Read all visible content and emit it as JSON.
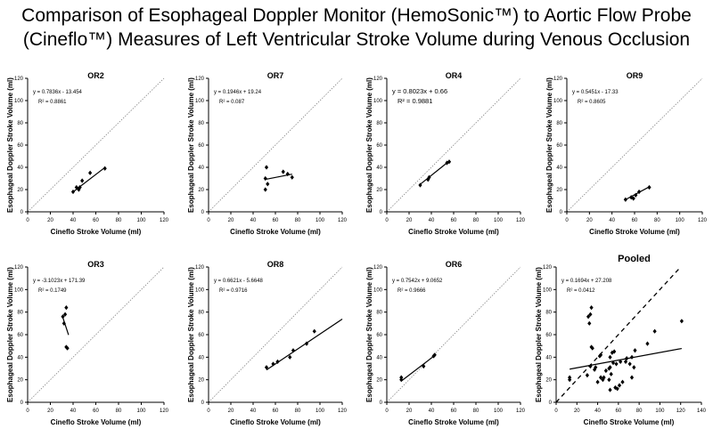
{
  "title": {
    "line1": "Comparison of Esophageal Doppler Monitor (HemoSonic™) to Aortic Flow Probe",
    "line2": "(Cineflo™) Measures of Left Ventricular Stroke Volume during Venous Occlusion"
  },
  "chart_data": [
    {
      "type": "scatter",
      "title": "OR2",
      "xlabel": "Cineflo Stroke Volume (ml)",
      "ylabel": "Esophageal Doppler Stroke Volume (ml)",
      "xlim": [
        0,
        120
      ],
      "ylim": [
        0,
        120
      ],
      "xticks": [
        0,
        20,
        40,
        60,
        80,
        100,
        120
      ],
      "yticks": [
        0,
        20,
        40,
        60,
        80,
        100,
        120
      ],
      "equation": "y = 0.7836x - 13.454",
      "r2": "R² = 0.8861",
      "points": [
        [
          40,
          18
        ],
        [
          43,
          22
        ],
        [
          45,
          20
        ],
        [
          46,
          22
        ],
        [
          48,
          28
        ],
        [
          55,
          35
        ],
        [
          68,
          39
        ]
      ],
      "fit": {
        "slope": 0.7836,
        "intercept": -13.454,
        "xrange": [
          40,
          68
        ]
      },
      "identity_line": true
    },
    {
      "type": "scatter",
      "title": "OR7",
      "xlabel": "Cineflo Stroke Volume (ml)",
      "ylabel": "Esophageal Doppler Stroke Volume (ml)",
      "xlim": [
        0,
        120
      ],
      "ylim": [
        0,
        120
      ],
      "xticks": [
        0,
        20,
        40,
        60,
        80,
        100,
        120
      ],
      "yticks": [
        0,
        20,
        40,
        60,
        80,
        100,
        120
      ],
      "equation": "y = 0.1946x + 19.24",
      "r2": "R² = 0.087",
      "points": [
        [
          51,
          20
        ],
        [
          51,
          30
        ],
        [
          52,
          40
        ],
        [
          53,
          25
        ],
        [
          67,
          36
        ],
        [
          71,
          34
        ],
        [
          75,
          31
        ]
      ],
      "fit": {
        "slope": 0.1946,
        "intercept": 19.24,
        "xrange": [
          51,
          75
        ]
      },
      "identity_line": true
    },
    {
      "type": "scatter",
      "title": "OR4",
      "xlabel": "Cineflo Stroke Volume (ml)",
      "ylabel": "Esophageal Doppler Stroke Volume (ml)",
      "xlim": [
        0,
        120
      ],
      "ylim": [
        0,
        120
      ],
      "xticks": [
        0,
        20,
        40,
        60,
        80,
        100,
        120
      ],
      "yticks": [
        0,
        20,
        40,
        60,
        80,
        100,
        120
      ],
      "equation": "y = 0.8023x + 0.66",
      "r2": "R² = 0.9881",
      "points": [
        [
          30,
          24
        ],
        [
          37,
          29
        ],
        [
          38,
          31
        ],
        [
          54,
          44
        ],
        [
          56,
          45
        ]
      ],
      "fit": {
        "slope": 0.8023,
        "intercept": 0.66,
        "xrange": [
          30,
          56
        ]
      },
      "identity_line": true
    },
    {
      "type": "scatter",
      "title": "OR9",
      "xlabel": "Cineflo Stroke Volume (ml)",
      "ylabel": "Esophageal Doppler Stroke Volume (ml)",
      "xlim": [
        0,
        120
      ],
      "ylim": [
        0,
        120
      ],
      "xticks": [
        0,
        20,
        40,
        60,
        80,
        100,
        120
      ],
      "yticks": [
        0,
        20,
        40,
        60,
        80,
        100,
        120
      ],
      "equation": "y = 0.5451x - 17.33",
      "r2": "R² = 0.8605",
      "points": [
        [
          52,
          11
        ],
        [
          57,
          13
        ],
        [
          59,
          12
        ],
        [
          61,
          15
        ],
        [
          64,
          18
        ],
        [
          73,
          22
        ]
      ],
      "fit": {
        "slope": 0.5451,
        "intercept": -17.33,
        "xrange": [
          52,
          73
        ]
      },
      "identity_line": true
    },
    {
      "type": "scatter",
      "title": "OR3",
      "xlabel": "Cineflo Stroke Volume (ml)",
      "ylabel": "Esophageal Doppler Stroke Volume (ml)",
      "xlim": [
        0,
        120
      ],
      "ylim": [
        0,
        120
      ],
      "xticks": [
        0,
        20,
        40,
        60,
        80,
        100,
        120
      ],
      "yticks": [
        0,
        20,
        40,
        60,
        80,
        100,
        120
      ],
      "equation": "y = -3.1023x + 171.39",
      "r2": "R² = 0.1749",
      "points": [
        [
          31,
          76
        ],
        [
          32,
          70
        ],
        [
          33,
          78
        ],
        [
          34,
          84
        ],
        [
          34,
          49
        ],
        [
          35,
          48
        ]
      ],
      "fit": {
        "slope": -3.1023,
        "intercept": 171.39,
        "xrange": [
          31,
          36
        ]
      },
      "identity_line": true
    },
    {
      "type": "scatter",
      "title": "OR8",
      "xlabel": "Cineflo Stroke Volume (ml)",
      "ylabel": "Esophageal Doppler Stroke Volume (ml)",
      "xlim": [
        0,
        120
      ],
      "ylim": [
        0,
        120
      ],
      "xticks": [
        0,
        20,
        40,
        60,
        80,
        100,
        120
      ],
      "yticks": [
        0,
        20,
        40,
        60,
        80,
        100,
        120
      ],
      "equation": "y = 0.6621x - 5.6648",
      "r2": "R² = 0.9716",
      "points": [
        [
          52,
          31
        ],
        [
          58,
          34
        ],
        [
          62,
          36
        ],
        [
          73,
          40
        ],
        [
          76,
          46
        ],
        [
          88,
          52
        ],
        [
          95,
          63
        ]
      ],
      "fit": {
        "slope": 0.6621,
        "intercept": -5.6648,
        "xrange": [
          52,
          120
        ]
      },
      "identity_line": true
    },
    {
      "type": "scatter",
      "title": "OR6",
      "xlabel": "Cineflo Stroke Volume (ml)",
      "ylabel": "Esophageal Doppler Stroke Volume (ml)",
      "xlim": [
        0,
        120
      ],
      "ylim": [
        0,
        120
      ],
      "xticks": [
        0,
        20,
        40,
        60,
        80,
        100,
        120
      ],
      "yticks": [
        0,
        20,
        40,
        60,
        80,
        100,
        120
      ],
      "equation": "y = 0.7542x + 9.0652",
      "r2": "R² = 0.9666",
      "points": [
        [
          13,
          20
        ],
        [
          13,
          22
        ],
        [
          33,
          32
        ],
        [
          42,
          41
        ],
        [
          43,
          42
        ]
      ],
      "fit": {
        "slope": 0.7542,
        "intercept": 9.0652,
        "xrange": [
          13,
          43
        ]
      },
      "identity_line": true
    },
    {
      "type": "scatter",
      "title": "Pooled",
      "xlabel": "Cineflo Stroke Volume (ml)",
      "ylabel": "Esophageal Doppler Stroke Volume (ml)",
      "xlim": [
        0,
        140
      ],
      "ylim": [
        0,
        120
      ],
      "xticks": [
        0,
        20,
        40,
        60,
        80,
        100,
        120,
        140
      ],
      "yticks": [
        0,
        20,
        40,
        60,
        80,
        100,
        120
      ],
      "equation": "y = 0.1694x + 27.208",
      "r2": "R² = 0.0412",
      "points": [
        [
          13,
          20
        ],
        [
          13,
          22
        ],
        [
          30,
          24
        ],
        [
          31,
          76
        ],
        [
          32,
          70
        ],
        [
          33,
          78
        ],
        [
          33,
          32
        ],
        [
          34,
          84
        ],
        [
          34,
          49
        ],
        [
          35,
          48
        ],
        [
          37,
          29
        ],
        [
          38,
          31
        ],
        [
          40,
          18
        ],
        [
          42,
          41
        ],
        [
          43,
          22
        ],
        [
          43,
          42
        ],
        [
          45,
          20
        ],
        [
          46,
          22
        ],
        [
          48,
          28
        ],
        [
          51,
          20
        ],
        [
          51,
          30
        ],
        [
          52,
          40
        ],
        [
          52,
          31
        ],
        [
          52,
          11
        ],
        [
          53,
          25
        ],
        [
          54,
          44
        ],
        [
          55,
          35
        ],
        [
          56,
          45
        ],
        [
          57,
          13
        ],
        [
          58,
          34
        ],
        [
          59,
          12
        ],
        [
          61,
          15
        ],
        [
          62,
          36
        ],
        [
          64,
          18
        ],
        [
          67,
          36
        ],
        [
          68,
          39
        ],
        [
          71,
          34
        ],
        [
          73,
          40
        ],
        [
          73,
          22
        ],
        [
          75,
          31
        ],
        [
          76,
          46
        ],
        [
          88,
          52
        ],
        [
          95,
          63
        ],
        [
          121,
          72
        ]
      ],
      "fit": {
        "slope": 0.1694,
        "intercept": 27.208,
        "xrange": [
          13,
          121
        ]
      },
      "identity_line": true,
      "identity_dashed": true
    }
  ]
}
